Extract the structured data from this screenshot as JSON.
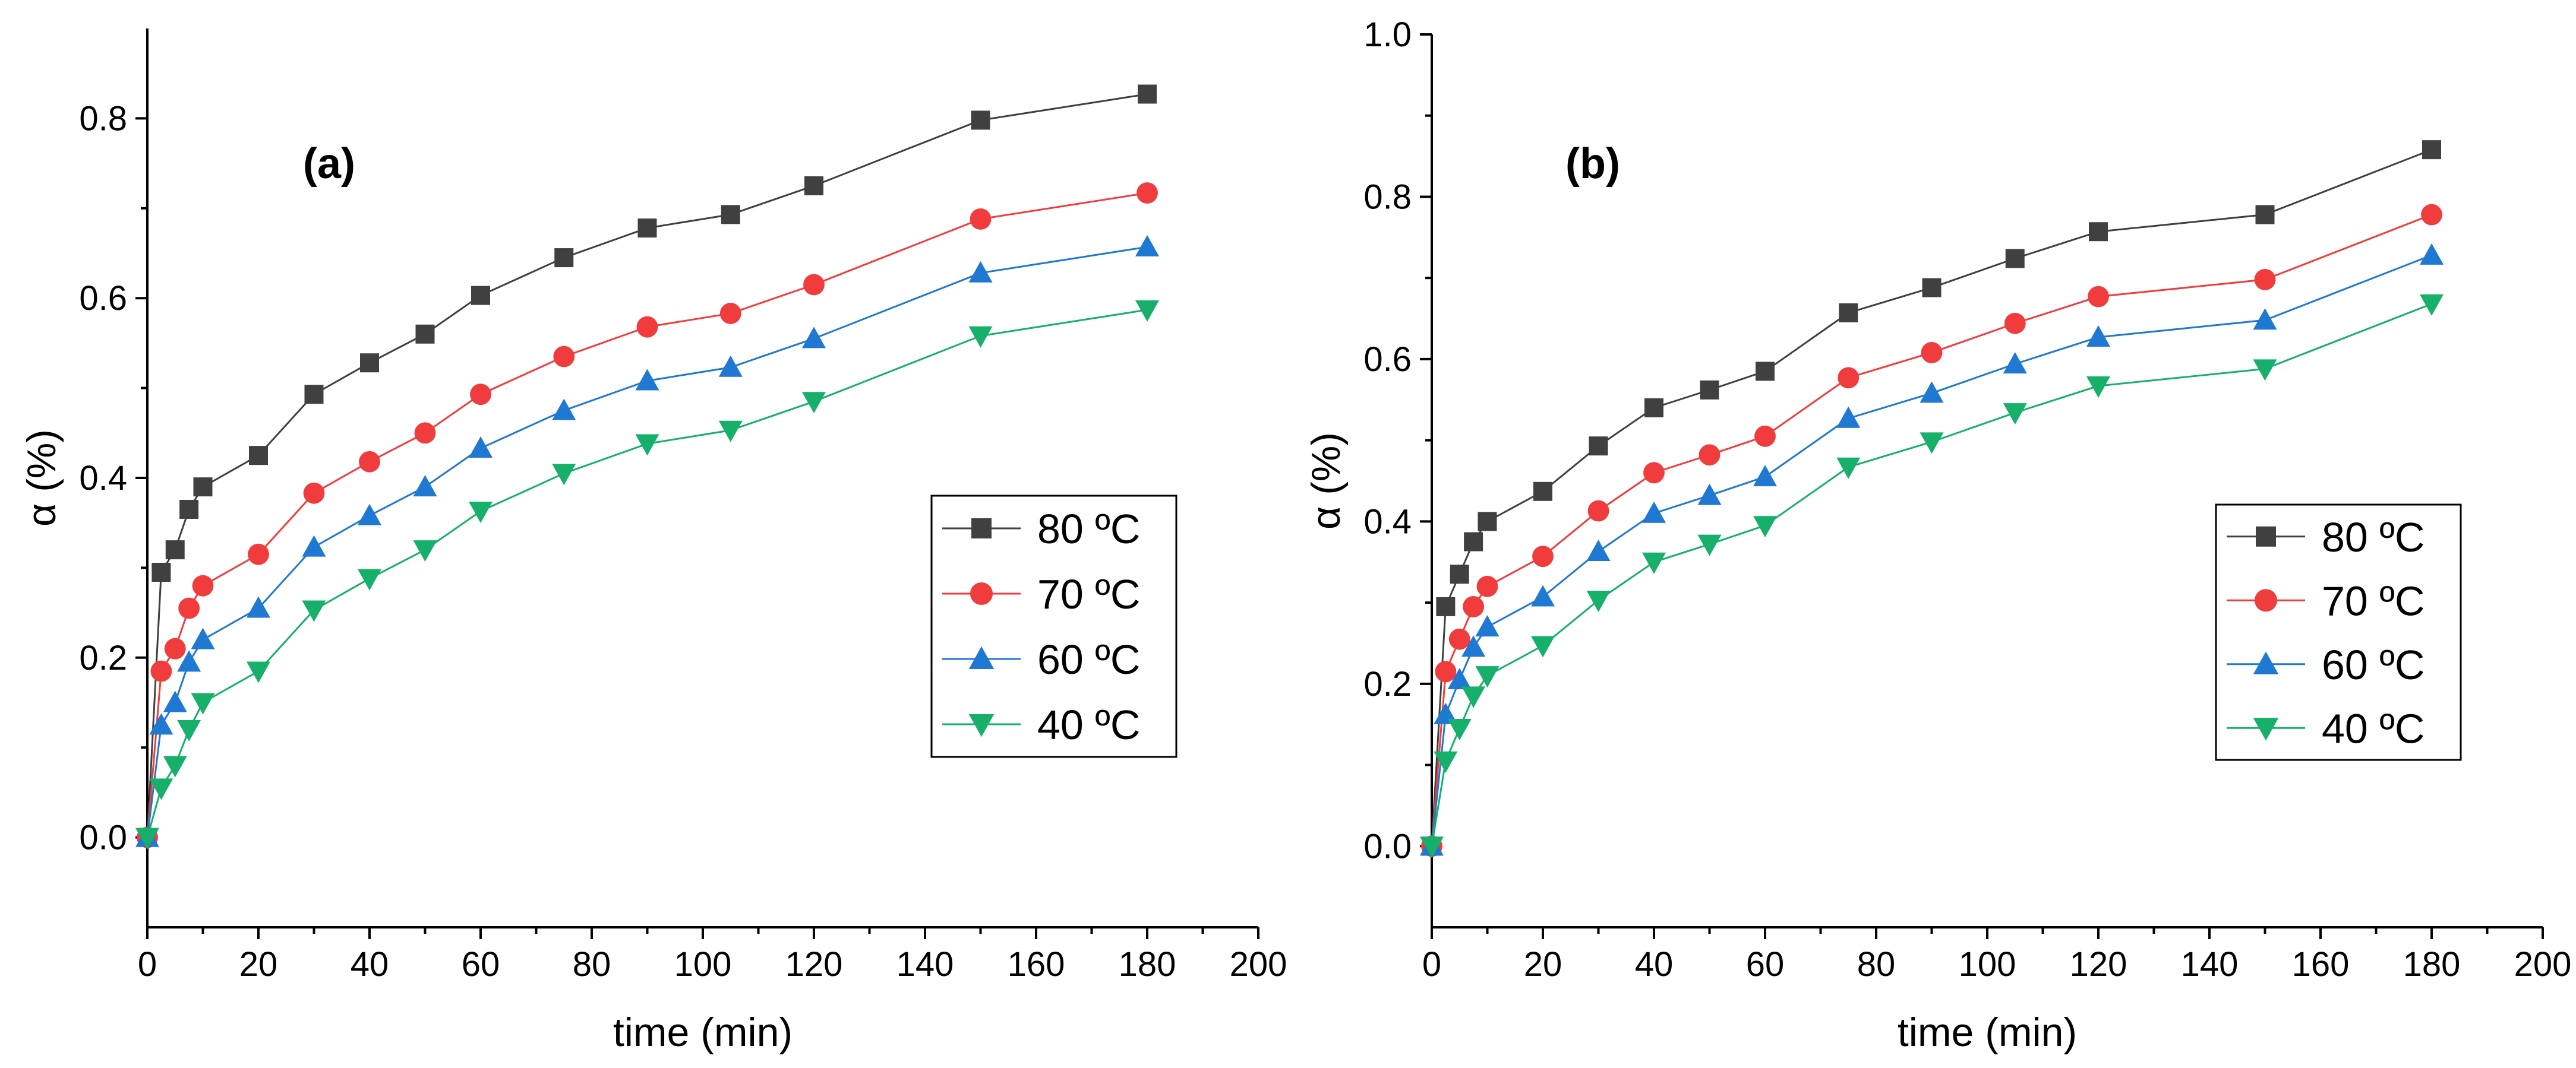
{
  "chart_data": [
    {
      "type": "line",
      "panel_label": "(a)",
      "xlabel": "time (min)",
      "ylabel": "α (%)",
      "xlim": [
        0,
        200
      ],
      "ylim": [
        -0.1,
        0.9
      ],
      "xticks": [
        0,
        20,
        40,
        60,
        80,
        100,
        120,
        140,
        160,
        180,
        200
      ],
      "yticks": [
        0.0,
        0.2,
        0.4,
        0.6,
        0.8
      ],
      "ytick_labels": [
        "0.0",
        "0.2",
        "0.4",
        "0.6",
        "0.8"
      ],
      "legend_position": "right",
      "x": [
        0,
        2.5,
        5,
        7.5,
        10,
        20,
        30,
        40,
        50,
        60,
        75,
        90,
        105,
        120,
        150,
        180
      ],
      "series": [
        {
          "name": "80 ºC",
          "color": "#404040",
          "marker": "square",
          "values": [
            0,
            0.295,
            0.32,
            0.365,
            0.39,
            0.425,
            0.493,
            0.528,
            0.56,
            0.603,
            0.645,
            0.678,
            0.693,
            0.725,
            0.798,
            0.827
          ]
        },
        {
          "name": "70 ºC",
          "color": "#f03c3c",
          "marker": "circle",
          "values": [
            0,
            0.185,
            0.21,
            0.255,
            0.28,
            0.315,
            0.383,
            0.418,
            0.45,
            0.493,
            0.535,
            0.568,
            0.583,
            0.615,
            0.688,
            0.717
          ]
        },
        {
          "name": "60 ºC",
          "color": "#1f78d1",
          "marker": "triangle-up",
          "values": [
            0,
            0.125,
            0.15,
            0.195,
            0.22,
            0.255,
            0.323,
            0.358,
            0.39,
            0.433,
            0.475,
            0.508,
            0.523,
            0.555,
            0.628,
            0.657
          ]
        },
        {
          "name": "40 ºC",
          "color": "#16b06a",
          "marker": "triangle-down",
          "values": [
            0,
            0.055,
            0.08,
            0.12,
            0.15,
            0.185,
            0.253,
            0.288,
            0.32,
            0.363,
            0.405,
            0.438,
            0.453,
            0.485,
            0.558,
            0.587
          ]
        }
      ]
    },
    {
      "type": "line",
      "panel_label": "(b)",
      "xlabel": "time (min)",
      "ylabel": "α (%)",
      "xlim": [
        0,
        200
      ],
      "ylim": [
        -0.1,
        1.0
      ],
      "xticks": [
        0,
        20,
        40,
        60,
        80,
        100,
        120,
        140,
        160,
        180,
        200
      ],
      "yticks": [
        0.0,
        0.2,
        0.4,
        0.6,
        0.8,
        1.0
      ],
      "ytick_labels": [
        "0.0",
        "0.2",
        "0.4",
        "0.6",
        "0.8",
        "1.0"
      ],
      "legend_position": "right",
      "x": [
        0,
        2.5,
        5,
        7.5,
        10,
        20,
        30,
        40,
        50,
        60,
        75,
        90,
        105,
        120,
        150,
        180
      ],
      "series": [
        {
          "name": "80 ºC",
          "color": "#404040",
          "marker": "square",
          "values": [
            0,
            0.295,
            0.335,
            0.375,
            0.4,
            0.437,
            0.493,
            0.54,
            0.562,
            0.585,
            0.657,
            0.688,
            0.724,
            0.757,
            0.778,
            0.858
          ]
        },
        {
          "name": "70 ºC",
          "color": "#f03c3c",
          "marker": "circle",
          "values": [
            0,
            0.215,
            0.255,
            0.295,
            0.32,
            0.357,
            0.413,
            0.46,
            0.482,
            0.505,
            0.577,
            0.608,
            0.644,
            0.677,
            0.698,
            0.778
          ]
        },
        {
          "name": "60 ºC",
          "color": "#1f78d1",
          "marker": "triangle-up",
          "values": [
            0,
            0.162,
            0.205,
            0.245,
            0.27,
            0.307,
            0.363,
            0.41,
            0.432,
            0.455,
            0.527,
            0.558,
            0.594,
            0.627,
            0.648,
            0.728
          ]
        },
        {
          "name": "40 ºC",
          "color": "#16b06a",
          "marker": "triangle-down",
          "values": [
            0,
            0.105,
            0.145,
            0.185,
            0.21,
            0.247,
            0.303,
            0.35,
            0.372,
            0.395,
            0.467,
            0.498,
            0.534,
            0.567,
            0.588,
            0.668
          ]
        }
      ]
    }
  ]
}
